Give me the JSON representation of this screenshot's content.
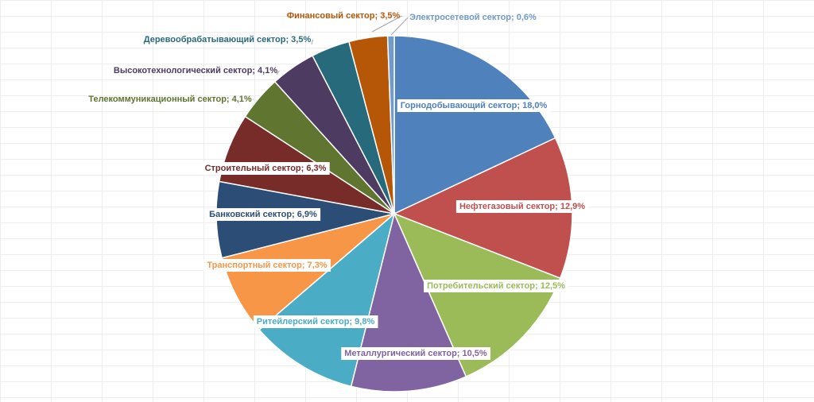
{
  "chart_data": {
    "type": "pie",
    "title": "",
    "slices": [
      {
        "label": "Горнодобывающий сектор; 18,0%",
        "value": 18.0,
        "color": "#4f81bd",
        "text_color": "#ffffff"
      },
      {
        "label": "Нефтегазовый сектор; 12,9%",
        "value": 12.9,
        "color": "#c0504d",
        "text_color": "#ffffff"
      },
      {
        "label": "Потребительский сектор; 12,5%",
        "value": 12.5,
        "color": "#9bbb59",
        "text_color": "#ffffff"
      },
      {
        "label": "Металлургический сектор; 10,5%",
        "value": 10.5,
        "color": "#8064a2",
        "text_color": "#ffffff"
      },
      {
        "label": "Ритейлерский сектор; 9,8%",
        "value": 9.8,
        "color": "#4bacc6",
        "text_color": "#ffffff"
      },
      {
        "label": "Транспортный сектор; 7,3%",
        "value": 7.3,
        "color": "#f79646",
        "text_color": "#ffffff"
      },
      {
        "label": "Банковский сектор; 6,9%",
        "value": 6.9,
        "color": "#2c4d75",
        "text_color": "#ffffff"
      },
      {
        "label": "Строительный сектор; 6,3%",
        "value": 6.3,
        "color": "#772c2a",
        "text_color": "#ffffff"
      },
      {
        "label": "Телекоммуникационный сектор; 4,1%",
        "value": 4.1,
        "color": "#5f7530",
        "text_color": "#5f7530"
      },
      {
        "label": "Высокотехнологический сектор; 4,1%",
        "value": 4.1,
        "color": "#4d3b62",
        "text_color": "#4d3b62"
      },
      {
        "label": "Деревообрабатывающий сектор; 3,5%",
        "value": 3.5,
        "color": "#276a7c",
        "text_color": "#276a7c"
      },
      {
        "label": "Финансовый сектор; 3,5%",
        "value": 3.5,
        "color": "#b65708",
        "text_color": "#b65708"
      },
      {
        "label": "Электросетевой сектор; 0,6%",
        "value": 0.6,
        "color": "#729aca",
        "text_color": "#729aca"
      }
    ],
    "start_angle_deg": 0,
    "direction": "clockwise",
    "legend": "none",
    "data_labels": "category and percent"
  }
}
